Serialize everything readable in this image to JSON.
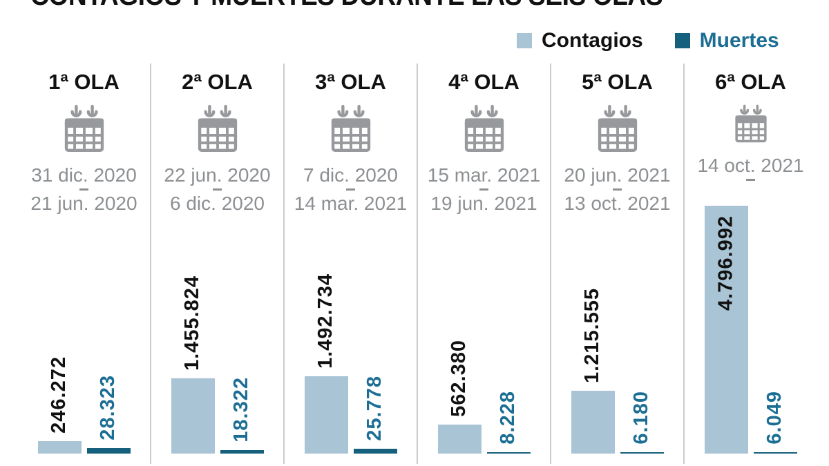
{
  "title": "CONTAGIOS Y MUERTES DURANTE LAS SEIS OLAS",
  "legend": {
    "contagios_label": "Contagios",
    "muertes_label": "Muertes"
  },
  "colors": {
    "contagios": "#a9c4d5",
    "muertes_bar": "#15607c",
    "muertes_text": "#1c6e94",
    "dates_gray": "#8d9093",
    "calendar_gray": "#97999c",
    "separator": "#cbcbcb",
    "ink": "#111111"
  },
  "chart_data": {
    "type": "bar",
    "title": "CONTAGIOS Y MUERTES DURANTE LAS SEIS OLAS",
    "series_names": [
      "Contagios",
      "Muertes"
    ],
    "legend_position": "top-right",
    "grid": false,
    "value_label_rotation": 90,
    "waves": [
      {
        "label": "1ª OLA",
        "date_start": "31 dic. 2020",
        "date_end": "21 jun. 2020",
        "contagios_label": "246.272",
        "contagios": 246272,
        "muertes_label": "28.323",
        "muertes": 28323
      },
      {
        "label": "2ª OLA",
        "date_start": "22 jun. 2020",
        "date_end": "6 dic. 2020",
        "contagios_label": "1.455.824",
        "contagios": 1455824,
        "muertes_label": "18.322",
        "muertes": 18322
      },
      {
        "label": "3ª OLA",
        "date_start": "7 dic. 2020",
        "date_end": "14 mar. 2021",
        "contagios_label": "1.492.734",
        "contagios": 1492734,
        "muertes_label": "25.778",
        "muertes": 25778
      },
      {
        "label": "4ª OLA",
        "date_start": "15 mar. 2021",
        "date_end": "19 jun. 2021",
        "contagios_label": "562.380",
        "contagios": 562380,
        "muertes_label": "8.228",
        "muertes": 8228
      },
      {
        "label": "5ª OLA",
        "date_start": "20 jun. 2021",
        "date_end": "13 oct. 2021",
        "contagios_label": "1.215.555",
        "contagios": 1215555,
        "muertes_label": "6.180",
        "muertes": 6180
      },
      {
        "label": "6ª OLA",
        "date_start": "14 oct. 2021",
        "date_end": "",
        "contagios_label": "4.796.992",
        "contagios": 4796992,
        "muertes_label": "6.049",
        "muertes": 6049
      }
    ]
  }
}
